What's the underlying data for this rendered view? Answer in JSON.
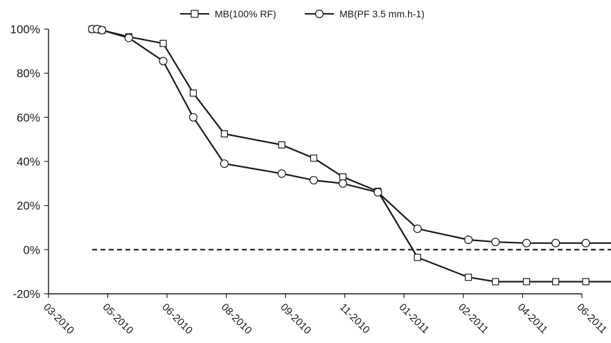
{
  "chart_data": {
    "type": "line",
    "title": "",
    "xlabel": "",
    "ylabel": "",
    "x_ticks": [
      "03-2010",
      "05-2010",
      "06-2010",
      "08-2010",
      "09-2010",
      "11-2010",
      "01-2011",
      "02-2011",
      "04-2011",
      "06-2011"
    ],
    "y_ticks": [
      "100%",
      "80%",
      "60%",
      "40%",
      "20%",
      "0%",
      "-20%"
    ],
    "ylim": [
      -20,
      100
    ],
    "grid": false,
    "legend_position": "top-center",
    "series": [
      {
        "name": "MB(100% RF)",
        "marker": "square",
        "color": "#1a1a1a",
        "points": [
          {
            "x": "2010-04-15",
            "y": 100
          },
          {
            "x": "2010-04-20",
            "y": 100
          },
          {
            "x": "2010-04-25",
            "y": 99.5
          },
          {
            "x": "2010-05-12",
            "y": 96.5
          },
          {
            "x": "2010-05-30",
            "y": 93.5
          },
          {
            "x": "2010-06-28",
            "y": 71
          },
          {
            "x": "2010-07-30",
            "y": 52.5
          },
          {
            "x": "2010-08-30",
            "y": 47.5
          },
          {
            "x": "2010-09-30",
            "y": 41.5
          },
          {
            "x": "2010-10-30",
            "y": 33
          },
          {
            "x": "2010-12-05",
            "y": 26.5
          },
          {
            "x": "2011-01-08",
            "y": -3.5
          },
          {
            "x": "2011-02-06",
            "y": -12.5
          },
          {
            "x": "2011-03-05",
            "y": -14.5
          },
          {
            "x": "2011-04-05",
            "y": -14.5
          },
          {
            "x": "2011-05-05",
            "y": -14.5
          },
          {
            "x": "2011-06-05",
            "y": -14.5
          },
          {
            "x": "2011-07-05",
            "y": -14.5
          }
        ]
      },
      {
        "name": "MB(PF 3.5 mm.h-1)",
        "marker": "circle",
        "color": "#1a1a1a",
        "points": [
          {
            "x": "2010-04-15",
            "y": 100
          },
          {
            "x": "2010-04-20",
            "y": 100
          },
          {
            "x": "2010-04-25",
            "y": 99.5
          },
          {
            "x": "2010-05-12",
            "y": 96
          },
          {
            "x": "2010-05-30",
            "y": 85.5
          },
          {
            "x": "2010-06-28",
            "y": 60
          },
          {
            "x": "2010-07-30",
            "y": 39
          },
          {
            "x": "2010-08-30",
            "y": 34.5
          },
          {
            "x": "2010-09-30",
            "y": 31.5
          },
          {
            "x": "2010-10-30",
            "y": 30
          },
          {
            "x": "2010-12-05",
            "y": 26
          },
          {
            "x": "2011-01-08",
            "y": 9.5
          },
          {
            "x": "2011-02-06",
            "y": 4.5
          },
          {
            "x": "2011-03-05",
            "y": 3.5
          },
          {
            "x": "2011-04-05",
            "y": 3
          },
          {
            "x": "2011-05-05",
            "y": 3
          },
          {
            "x": "2011-06-05",
            "y": 3
          },
          {
            "x": "2011-07-05",
            "y": 3
          }
        ]
      }
    ],
    "reference_line": {
      "y": 0,
      "style": "dashed",
      "x_start": "2010-04-15",
      "x_end": "2011-07-05"
    }
  }
}
